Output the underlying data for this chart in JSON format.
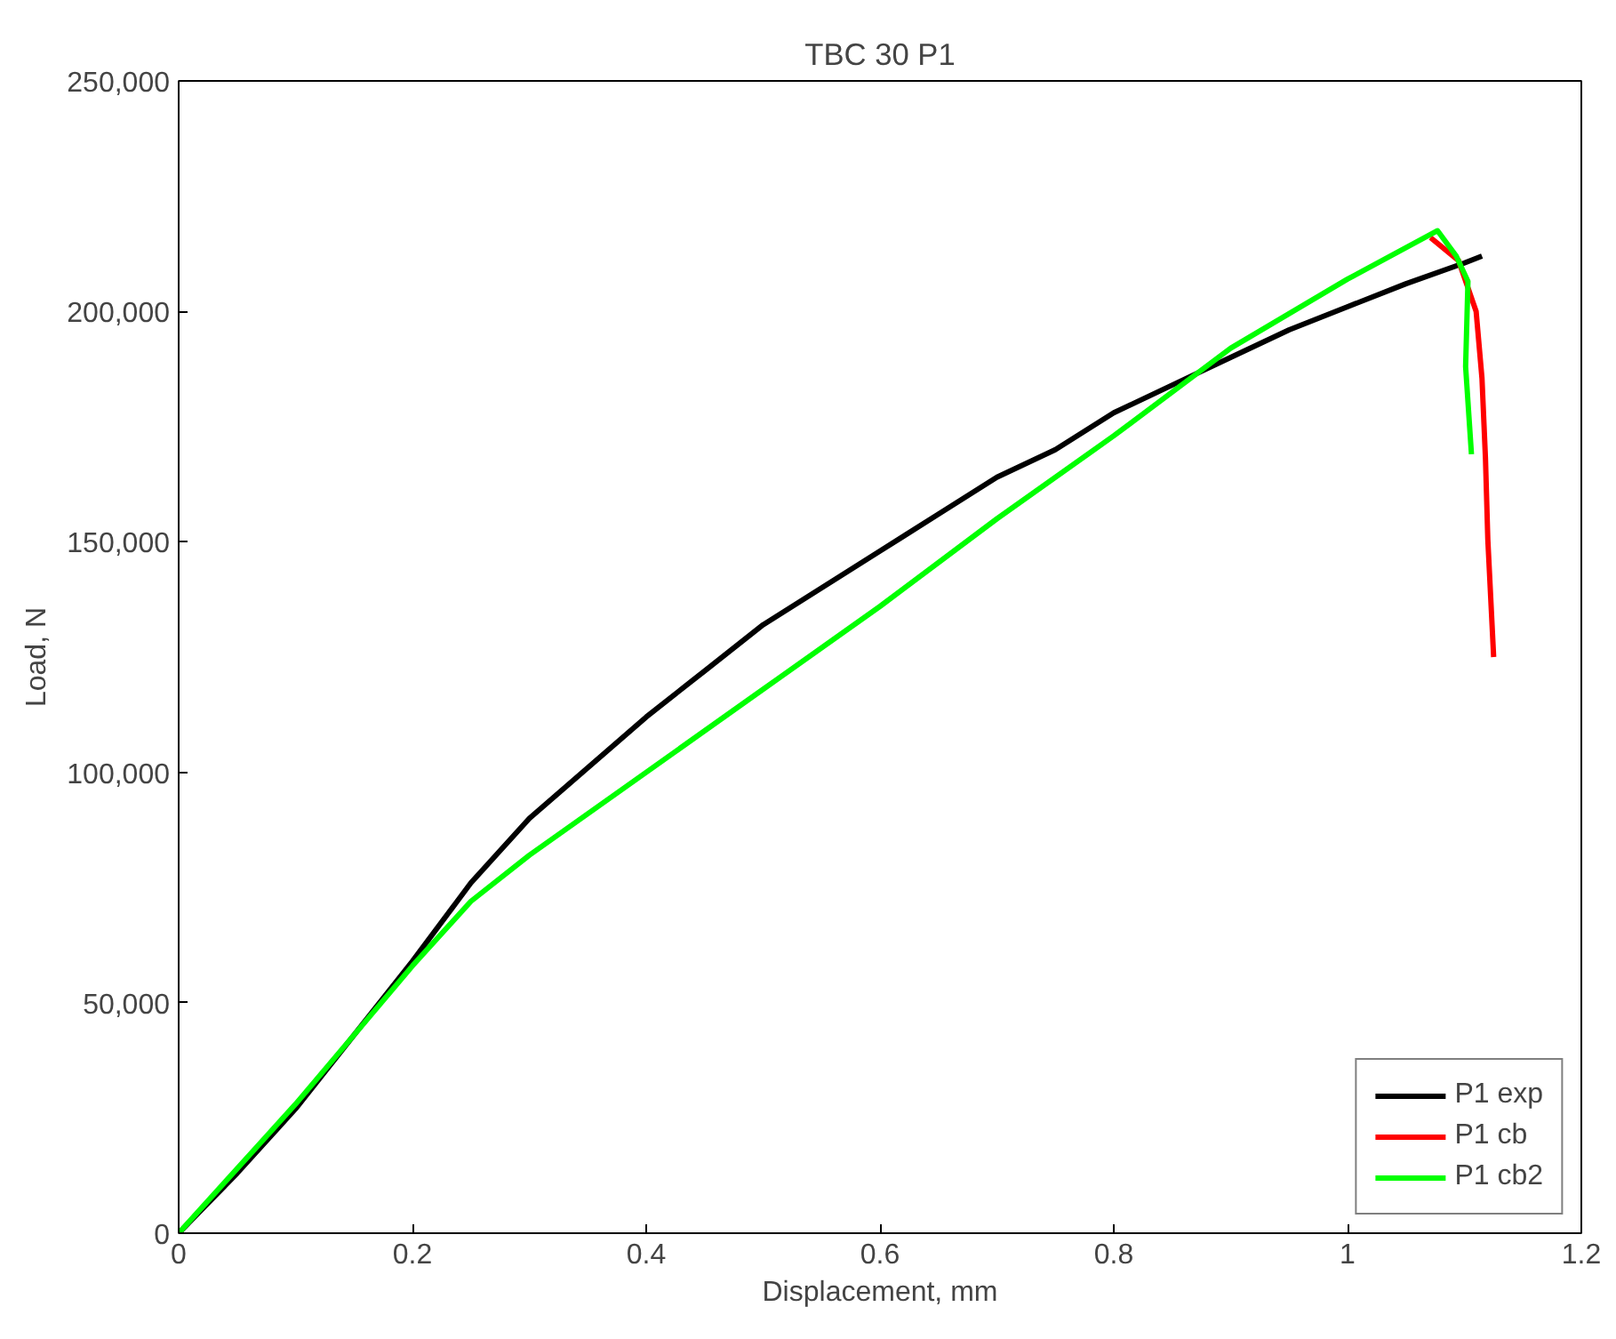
{
  "chart_data": {
    "type": "line",
    "title": "TBC 30 P1",
    "xlabel": "Displacement, mm",
    "ylabel": "Load, N",
    "xlim": [
      0,
      1.2
    ],
    "ylim": [
      0,
      250000
    ],
    "xticks": [
      0,
      0.2,
      0.4,
      0.6,
      0.8,
      1,
      1.2
    ],
    "yticks": [
      0,
      {
        "value": 50000,
        "label": "50,000"
      },
      {
        "value": 100000,
        "label": "100,000"
      },
      {
        "value": 150000,
        "label": "150,000"
      },
      {
        "value": 200000,
        "label": "200,000"
      },
      {
        "value": 250000,
        "label": "250,000"
      }
    ],
    "grid": false,
    "legend": "bottom right",
    "line_style": "solid",
    "marker": "none",
    "series": [
      {
        "name": "P1 exp",
        "color": "#000000",
        "x": [
          0,
          0.05,
          0.1,
          0.15,
          0.2,
          0.25,
          0.3,
          0.35,
          0.4,
          0.45,
          0.5,
          0.55,
          0.6,
          0.65,
          0.7,
          0.75,
          0.8,
          0.85,
          0.9,
          0.95,
          1.0,
          1.05,
          1.1,
          1.115
        ],
        "values": [
          0,
          13000,
          27000,
          43000,
          59000,
          76000,
          90000,
          101000,
          112000,
          122000,
          132000,
          140000,
          148000,
          156000,
          164000,
          170000,
          178000,
          184000,
          190000,
          196000,
          201000,
          206000,
          210500,
          212000
        ]
      },
      {
        "name": "P1 cb",
        "color": "#ff0000",
        "x": [
          1.071,
          1.095,
          1.11,
          1.115,
          1.118,
          1.12,
          1.125
        ],
        "values": [
          216000,
          211000,
          200000,
          185500,
          168000,
          150500,
          125000
        ]
      },
      {
        "name": "P1 cb2",
        "color": "#00ff00",
        "x": [
          0,
          0.1,
          0.2,
          0.25,
          0.3,
          0.4,
          0.5,
          0.6,
          0.7,
          0.8,
          0.9,
          1.0,
          1.077,
          1.093,
          1.103,
          1.101,
          1.106
        ],
        "values": [
          0,
          28000,
          58000,
          72000,
          82000,
          100000,
          118000,
          136000,
          155000,
          173000,
          192000,
          207000,
          217500,
          212000,
          206500,
          188000,
          169000
        ]
      }
    ]
  }
}
